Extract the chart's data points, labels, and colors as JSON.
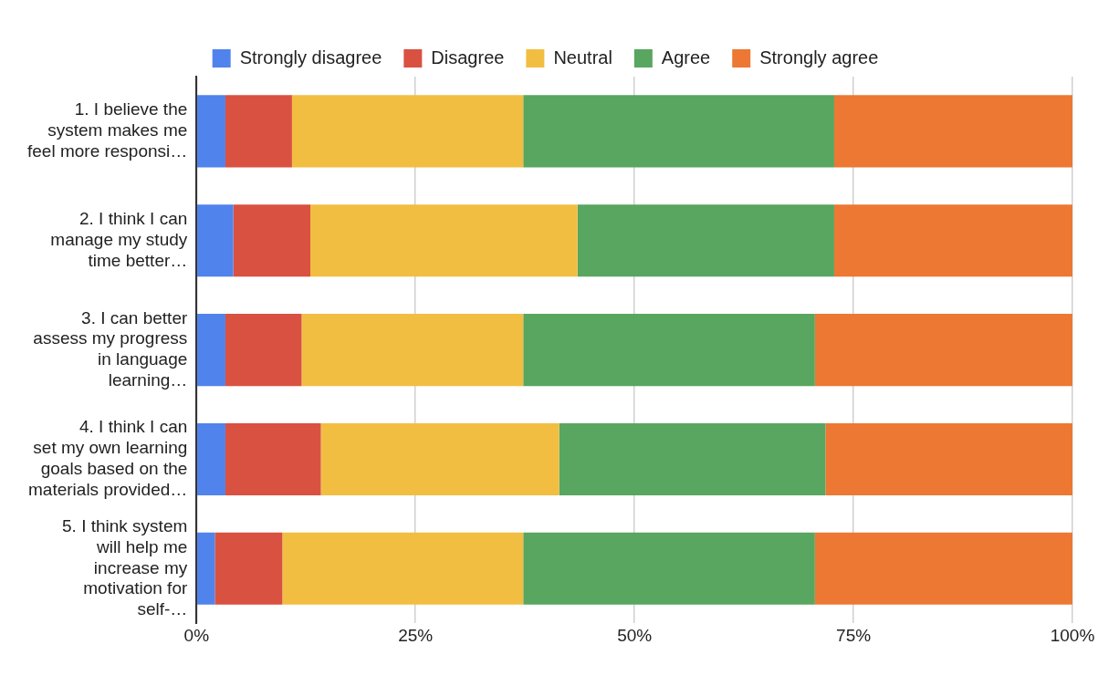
{
  "chart_data": {
    "type": "bar",
    "orientation": "horizontal",
    "stacked": true,
    "categories": [
      "1. I believe the system makes me feel more responsi…",
      "2. I think I can manage my study time better…",
      "3. I can better assess my progress in language learning…",
      "4. I think I can set my own learning goals based on the materials provided…",
      "5. I think system will help me increase my motivation for self-…"
    ],
    "series": [
      {
        "name": "Strongly disagree",
        "color": "#5083ec",
        "values": [
          3.3,
          4.2,
          3.3,
          3.3,
          2.1
        ]
      },
      {
        "name": "Disagree",
        "color": "#d95140",
        "values": [
          7.6,
          8.8,
          8.7,
          10.9,
          7.7
        ]
      },
      {
        "name": "Neutral",
        "color": "#f2be42",
        "values": [
          26.4,
          30.5,
          25.3,
          27.2,
          27.5
        ]
      },
      {
        "name": "Agree",
        "color": "#58a65f",
        "values": [
          35.5,
          29.3,
          33.3,
          30.4,
          33.3
        ]
      },
      {
        "name": "Strongly agree",
        "color": "#ec7833",
        "values": [
          27.2,
          27.2,
          29.4,
          28.2,
          29.4
        ]
      }
    ],
    "xlim": [
      0,
      100
    ],
    "xticks": [
      {
        "value": 0,
        "label": "0%"
      },
      {
        "value": 25,
        "label": "25%"
      },
      {
        "value": 50,
        "label": "50%"
      },
      {
        "value": 75,
        "label": "75%"
      },
      {
        "value": 100,
        "label": "100%"
      }
    ],
    "grid": "x",
    "legend": "top"
  }
}
